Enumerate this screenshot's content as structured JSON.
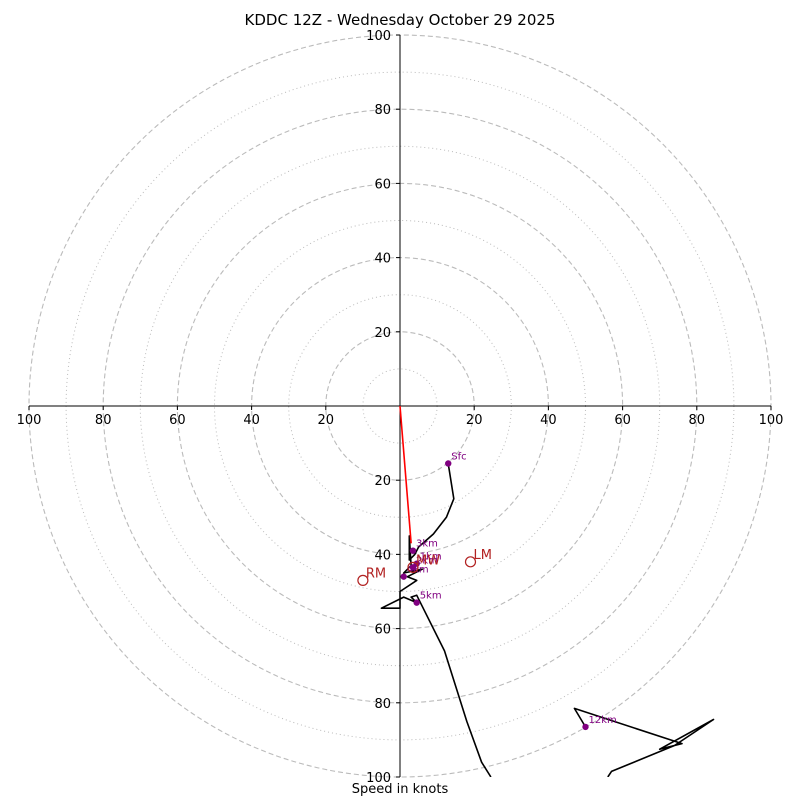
{
  "chart_data": {
    "type": "hodograph",
    "title": "KDDC 12Z - Wednesday October 29 2025",
    "xlabel": "Speed in knots",
    "units": "knots",
    "max_speed": 100,
    "ring_major": [
      20,
      40,
      60,
      80,
      100
    ],
    "ring_minor": [
      10,
      30,
      50,
      70,
      90
    ],
    "x_ticks": [
      {
        "value": -100,
        "label": "100"
      },
      {
        "value": -80,
        "label": "80"
      },
      {
        "value": -60,
        "label": "60"
      },
      {
        "value": -40,
        "label": "40"
      },
      {
        "value": -20,
        "label": "20"
      },
      {
        "value": 20,
        "label": "20"
      },
      {
        "value": 40,
        "label": "40"
      },
      {
        "value": 60,
        "label": "60"
      },
      {
        "value": 80,
        "label": "80"
      },
      {
        "value": 100,
        "label": "100"
      }
    ],
    "y_ticks": [
      {
        "value": 100,
        "label": "100"
      },
      {
        "value": 80,
        "label": "80"
      },
      {
        "value": 60,
        "label": "60"
      },
      {
        "value": 40,
        "label": "40"
      },
      {
        "value": 20,
        "label": "20"
      },
      {
        "value": -20,
        "label": "20"
      },
      {
        "value": -40,
        "label": "40"
      },
      {
        "value": -60,
        "label": "60"
      },
      {
        "value": -80,
        "label": "80"
      },
      {
        "value": -100,
        "label": "100"
      }
    ],
    "hodograph_trace": [
      [
        13,
        -15.5
      ],
      [
        14.5,
        -25
      ],
      [
        12.5,
        -30
      ],
      [
        9,
        -34.5
      ],
      [
        5,
        -38
      ],
      [
        4,
        -40
      ],
      [
        2.5,
        -41.5
      ],
      [
        2.5,
        -35
      ],
      [
        3,
        -43
      ],
      [
        1,
        -45
      ],
      [
        6,
        -44
      ],
      [
        2,
        -46
      ],
      [
        4.5,
        -47
      ],
      [
        0,
        -50
      ],
      [
        0,
        -54.5
      ],
      [
        -5,
        -54.5
      ],
      [
        1,
        -51.5
      ],
      [
        4.5,
        -53
      ],
      [
        3,
        -51.5
      ],
      [
        4.5,
        -51
      ],
      [
        12,
        -66
      ],
      [
        18,
        -85
      ],
      [
        22,
        -96
      ],
      [
        24.5,
        -100
      ]
    ],
    "hodograph_trace_upper": [
      [
        56,
        -100
      ],
      [
        57,
        -98.5
      ],
      [
        74,
        -91.5
      ],
      [
        84.5,
        -84.5
      ],
      [
        70,
        -92.5
      ],
      [
        76,
        -91
      ],
      [
        47,
        -81.5
      ],
      [
        50,
        -86.5
      ]
    ],
    "storm_motion_vector": {
      "from": [
        0,
        0
      ],
      "to": [
        3,
        -37
      ],
      "color": "#ff0000"
    },
    "height_markers": [
      {
        "label": "Sfc",
        "u": 13,
        "v": -15.5
      },
      {
        "label": "3km",
        "u": 3.5,
        "v": -39
      },
      {
        "label": "1km",
        "u": 4.5,
        "v": -42.5
      },
      {
        "label": "2km",
        "u": 3.5,
        "v": -43.5
      },
      {
        "label": "4km",
        "u": 1,
        "v": -46
      },
      {
        "label": "5km",
        "u": 4.5,
        "v": -53
      },
      {
        "label": "12km",
        "u": 50,
        "v": -86.5
      }
    ],
    "storm_motions": [
      {
        "label": "LM",
        "u": 19,
        "v": -42
      },
      {
        "label": "MW",
        "u": 3.5,
        "v": -43.5
      },
      {
        "label": "RM",
        "u": -10,
        "v": -47
      }
    ],
    "colors": {
      "trace": "#000000",
      "vector": "#ff0000",
      "markers": "#800080",
      "storm_motion": "#b22222",
      "grid": "#bbbbbb"
    }
  }
}
